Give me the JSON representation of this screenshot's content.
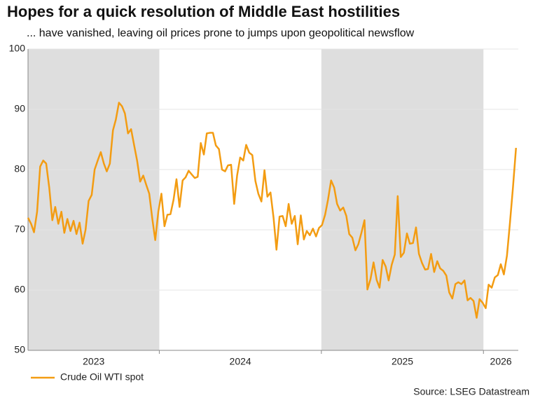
{
  "chart_data": {
    "type": "line",
    "title": "Hopes for a quick resolution of Middle East hostilities",
    "subtitle": "... have vanished, leaving oil prices prone to jumps upon geopolitical newsflow",
    "source": "Source: LSEG Datastream",
    "xlim": [
      2023.19,
      2026.215
    ],
    "ylim": [
      50,
      100
    ],
    "yticks": [
      50,
      60,
      70,
      80,
      90,
      100
    ],
    "grid": true,
    "legend": "bottom-left",
    "periods": [
      {
        "label": "2023",
        "from": 2023.19,
        "to": 2024,
        "shaded": true
      },
      {
        "label": "2024",
        "from": 2024,
        "to": 2025,
        "shaded": false
      },
      {
        "label": "2025",
        "from": 2025,
        "to": 2026,
        "shaded": true
      },
      {
        "label": "2026",
        "from": 2026,
        "to": 2026.215,
        "shaded": false
      }
    ],
    "x": [
      2023.19,
      2023.209,
      2023.227,
      2023.246,
      2023.265,
      2023.284,
      2023.302,
      2023.321,
      2023.34,
      2023.358,
      2023.377,
      2023.396,
      2023.414,
      2023.433,
      2023.452,
      2023.471,
      2023.489,
      2023.508,
      2023.527,
      2023.545,
      2023.564,
      2023.583,
      2023.601,
      2023.62,
      2023.639,
      2023.658,
      2023.676,
      2023.695,
      2023.714,
      2023.732,
      2023.751,
      2023.77,
      2023.788,
      2023.807,
      2023.826,
      2023.845,
      2023.863,
      2023.882,
      2023.901,
      2023.919,
      2023.938,
      2023.957,
      2023.975,
      2023.994,
      2024.013,
      2024.032,
      2024.05,
      2024.069,
      2024.088,
      2024.106,
      2024.125,
      2024.144,
      2024.162,
      2024.181,
      2024.2,
      2024.219,
      2024.237,
      2024.256,
      2024.275,
      2024.293,
      2024.312,
      2024.331,
      2024.349,
      2024.368,
      2024.387,
      2024.406,
      2024.424,
      2024.443,
      2024.462,
      2024.48,
      2024.499,
      2024.518,
      2024.536,
      2024.555,
      2024.574,
      2024.593,
      2024.611,
      2024.63,
      2024.649,
      2024.667,
      2024.686,
      2024.705,
      2024.723,
      2024.742,
      2024.761,
      2024.78,
      2024.798,
      2024.817,
      2024.836,
      2024.854,
      2024.873,
      2024.892,
      2024.91,
      2024.929,
      2024.948,
      2024.967,
      2024.985,
      2025.004,
      2025.023,
      2025.041,
      2025.06,
      2025.079,
      2025.097,
      2025.116,
      2025.135,
      2025.154,
      2025.172,
      2025.191,
      2025.21,
      2025.228,
      2025.247,
      2025.266,
      2025.284,
      2025.303,
      2025.322,
      2025.341,
      2025.359,
      2025.378,
      2025.397,
      2025.415,
      2025.434,
      2025.453,
      2025.471,
      2025.49,
      2025.509,
      2025.528,
      2025.546,
      2025.565,
      2025.584,
      2025.602,
      2025.621,
      2025.64,
      2025.658,
      2025.677,
      2025.696,
      2025.715,
      2025.733,
      2025.752,
      2025.771,
      2025.789,
      2025.808,
      2025.827,
      2025.845,
      2025.864,
      2025.883,
      2025.902,
      2025.92,
      2025.939,
      2025.958,
      2025.976,
      2025.995,
      2026.014,
      2026.032,
      2026.051,
      2026.07,
      2026.089,
      2026.107,
      2026.126,
      2026.145,
      2026.163,
      2026.182,
      2026.201
    ],
    "series": [
      {
        "name": "Crude Oil WTI spot",
        "color": "#f39c12",
        "values": [
          72,
          71,
          69.6,
          73,
          80.5,
          81.5,
          81,
          77,
          71.6,
          73.8,
          71,
          73,
          69.5,
          71.8,
          69.8,
          71.5,
          69.3,
          71.2,
          67.7,
          70,
          74.8,
          75.8,
          80,
          81.5,
          82.9,
          81,
          79.7,
          81,
          86.5,
          88.3,
          91.1,
          90.5,
          89.3,
          86,
          86.7,
          84,
          81.5,
          78,
          79,
          77.5,
          76,
          71.8,
          68.3,
          73,
          76,
          70.6,
          72.5,
          72.6,
          75,
          78.4,
          73.8,
          78.2,
          78.7,
          79.8,
          79.2,
          78.6,
          78.8,
          84.4,
          82.5,
          86,
          86.1,
          86.1,
          84,
          83.4,
          80,
          79.7,
          80.7,
          80.8,
          74.3,
          79,
          82,
          81.5,
          84.1,
          82.8,
          82.4,
          78.1,
          76,
          74.7,
          79.9,
          75.5,
          76.2,
          72,
          66.7,
          72.2,
          72.3,
          70.6,
          74.3,
          71,
          72.3,
          67.6,
          72.4,
          68.4,
          69.8,
          69.1,
          70.2,
          68.9,
          70.3,
          70.8,
          72.5,
          75,
          78.2,
          77,
          74.3,
          73.2,
          73.7,
          72.3,
          69.3,
          68.7,
          66.6,
          67.6,
          69.5,
          71.6,
          60.1,
          61.8,
          64.6,
          61.7,
          60.4,
          65,
          63.9,
          61.6,
          64.2,
          65.9,
          75.6,
          65.5,
          66.2,
          69.4,
          67.7,
          67.8,
          70.4,
          66,
          64.5,
          63.4,
          63.5,
          66,
          63,
          64.8,
          63.6,
          63.2,
          62.4,
          59.6,
          58.6,
          61,
          61.3,
          61,
          61.6,
          58.3,
          58.7,
          58.2,
          55.4,
          58.5,
          57.9,
          57,
          60.9,
          60.4,
          62.1,
          62.5,
          64.3,
          62.6,
          65.7,
          71,
          77,
          83.6
        ]
      }
    ]
  }
}
